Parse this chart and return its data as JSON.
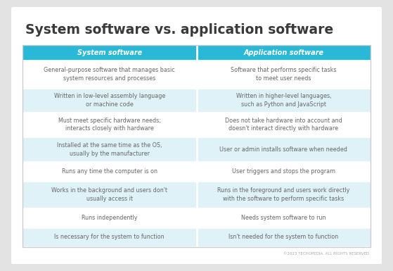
{
  "title": "System software vs. application software",
  "title_fontsize": 13.5,
  "title_fontweight": "bold",
  "title_color": "#3a3a3a",
  "header": [
    "System software",
    "Application software"
  ],
  "header_bg": "#29b8d8",
  "header_text_color": "#ffffff",
  "header_fontsize": 7.0,
  "rows": [
    [
      "General-purpose software that manages basic\nsystem resources and processes",
      "Software that performs specific tasks\nto meet user needs"
    ],
    [
      "Written in low-level assembly language\nor machine code",
      "Written in higher-level languages,\nsuch as Python and JavaScript"
    ],
    [
      "Must meet specific hardware needs;\ninteracts closely with hardware",
      "Does not take hardware into account and\ndoesn't interact directly with hardware"
    ],
    [
      "Installed at the same time as the OS,\nusually by the manufacturer",
      "User or admin installs software when needed"
    ],
    [
      "Runs any time the computer is on",
      "User triggers and stops the program"
    ],
    [
      "Works in the background and users don't\nusually access it",
      "Runs in the foreground and users work directly\nwith the software to perform specific tasks"
    ],
    [
      "Runs independently",
      "Needs system software to run"
    ],
    [
      "Is necessary for the system to function",
      "Isn't needed for the system to function"
    ]
  ],
  "row_bg_even": "#dff2f8",
  "row_bg_odd": "#ffffff",
  "cell_text_color": "#666666",
  "cell_fontsize": 5.8,
  "outer_bg": "#e3e3e3",
  "card_bg": "#ffffff",
  "divider_color": "#ffffff",
  "footer_text": "©2023 TECHOPEDIA. ALL RIGHTS RESERVED.",
  "footer_fontsize": 4.0,
  "footer_color": "#aaaaaa"
}
